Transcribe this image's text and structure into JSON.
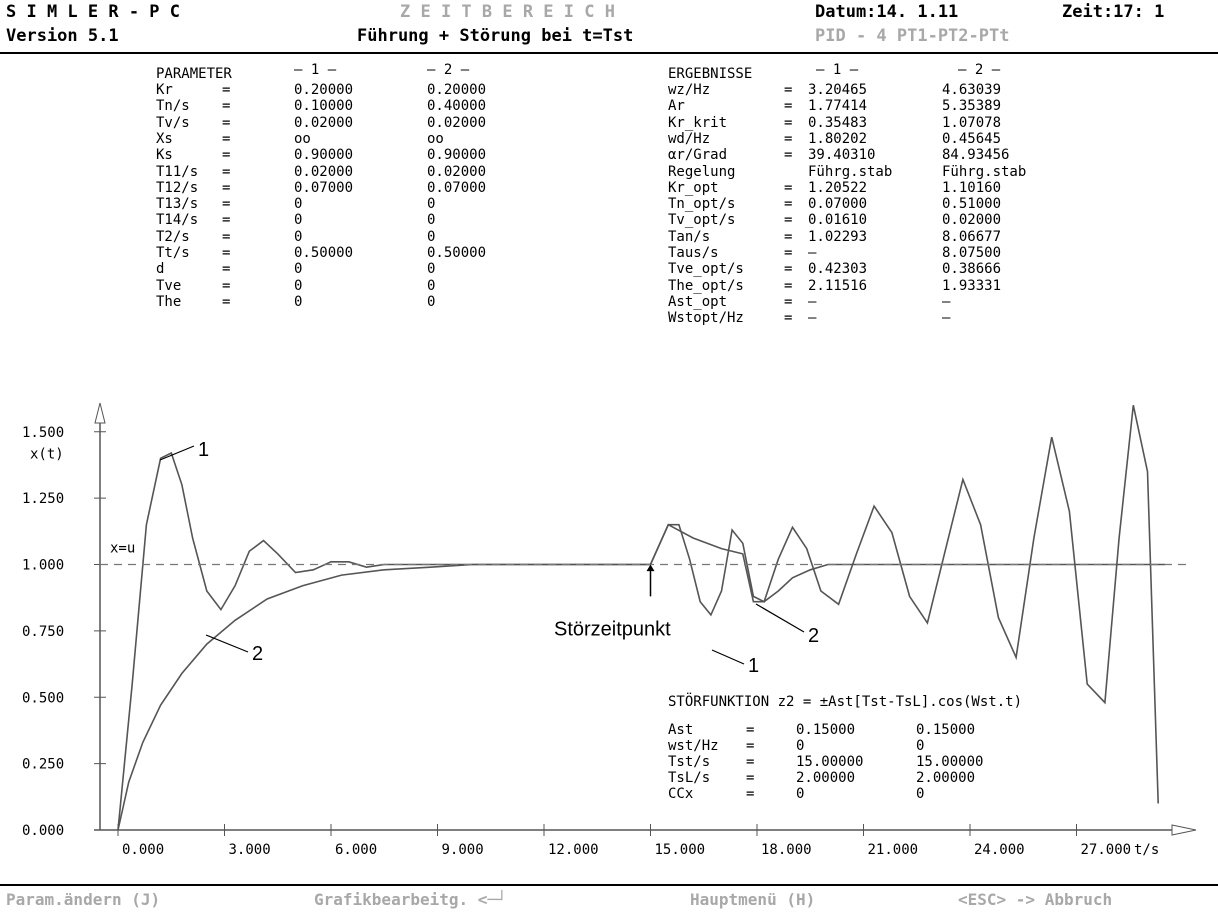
{
  "header": {
    "app": "S I M L E R - P C",
    "version": "Version 5.1",
    "mode": "Z E I T B E R E I C H",
    "subtitle": "Führung + Störung bei t=Tst",
    "date": "Datum:14. 1.11",
    "time": "Zeit:17: 1",
    "model": "PID - 4 PT1-PT2-PTt"
  },
  "parameters": {
    "title": "PARAMETER",
    "col1": "— 1 —",
    "col2": "— 2 —",
    "rows": [
      {
        "name": "Kr",
        "eq": "=",
        "v1": "0.20000",
        "v2": "0.20000"
      },
      {
        "name": "Tn/s",
        "eq": "=",
        "v1": "0.10000",
        "v2": "0.40000"
      },
      {
        "name": "Tv/s",
        "eq": "=",
        "v1": "0.02000",
        "v2": "0.02000"
      },
      {
        "name": "Xs",
        "eq": "=",
        "v1": "oo",
        "v2": "oo"
      },
      {
        "name": "Ks",
        "eq": "=",
        "v1": "0.90000",
        "v2": "0.90000"
      },
      {
        "name": "T11/s",
        "eq": "=",
        "v1": "0.02000",
        "v2": "0.02000"
      },
      {
        "name": "T12/s",
        "eq": "=",
        "v1": "0.07000",
        "v2": "0.07000"
      },
      {
        "name": "T13/s",
        "eq": "=",
        "v1": "0",
        "v2": "0"
      },
      {
        "name": "T14/s",
        "eq": "=",
        "v1": "0",
        "v2": "0"
      },
      {
        "name": "T2/s",
        "eq": "=",
        "v1": "0",
        "v2": "0"
      },
      {
        "name": "Tt/s",
        "eq": "=",
        "v1": "0.50000",
        "v2": "0.50000"
      },
      {
        "name": "d",
        "eq": "=",
        "v1": "0",
        "v2": "0"
      },
      {
        "name": "Tve",
        "eq": "=",
        "v1": "0",
        "v2": "0"
      },
      {
        "name": "The",
        "eq": "=",
        "v1": "0",
        "v2": "0"
      }
    ]
  },
  "results": {
    "title": "ERGEBNISSE",
    "col1": "— 1 —",
    "col2": "— 2 —",
    "rows": [
      {
        "name": "wz/Hz",
        "eq": "=",
        "v1": "3.20465",
        "v2": "4.63039"
      },
      {
        "name": "Ar",
        "eq": "=",
        "v1": "1.77414",
        "v2": "5.35389"
      },
      {
        "name": "Kr_krit",
        "eq": "=",
        "v1": "0.35483",
        "v2": "1.07078"
      },
      {
        "name": "wd/Hz",
        "eq": "=",
        "v1": "1.80202",
        "v2": "0.45645"
      },
      {
        "name": "αr/Grad",
        "eq": "=",
        "v1": "39.40310",
        "v2": "84.93456"
      },
      {
        "name": "Regelung",
        "eq": "",
        "v1": "Führg.stab",
        "v2": "Führg.stab"
      },
      {
        "name": "Kr_opt",
        "eq": "=",
        "v1": "1.20522",
        "v2": "1.10160"
      },
      {
        "name": "Tn_opt/s",
        "eq": "=",
        "v1": "0.07000",
        "v2": "0.51000"
      },
      {
        "name": "Tv_opt/s",
        "eq": "=",
        "v1": "0.01610",
        "v2": "0.02000"
      },
      {
        "name": "Tan/s",
        "eq": "=",
        "v1": "1.02293",
        "v2": "8.06677"
      },
      {
        "name": "Taus/s",
        "eq": "=",
        "v1": "–",
        "v2": "8.07500"
      },
      {
        "name": "Tve_opt/s",
        "eq": "=",
        "v1": "0.42303",
        "v2": "0.38666"
      },
      {
        "name": "The_opt/s",
        "eq": "=",
        "v1": "2.11516",
        "v2": "1.93331"
      },
      {
        "name": "Ast_opt",
        "eq": "=",
        "v1": "–",
        "v2": "–"
      },
      {
        "name": "Wstopt/Hz",
        "eq": "=",
        "v1": "–",
        "v2": "–"
      }
    ]
  },
  "disturbance": {
    "title": "STÖRFUNKTION z2 = ±Ast[Tst-TsL].cos(Wst.t)",
    "rows": [
      {
        "name": "Ast",
        "eq": "=",
        "v1": "0.15000",
        "v2": "0.15000"
      },
      {
        "name": "wst/Hz",
        "eq": "=",
        "v1": "0",
        "v2": "0"
      },
      {
        "name": "Tst/s",
        "eq": "=",
        "v1": "15.00000",
        "v2": "15.00000"
      },
      {
        "name": "TsL/s",
        "eq": "=",
        "v1": "2.00000",
        "v2": "2.00000"
      },
      {
        "name": "CCx",
        "eq": "=",
        "v1": "0",
        "v2": "0"
      }
    ]
  },
  "chart_data": {
    "type": "line",
    "ylabel": "x(t)",
    "xlabel": "t/s",
    "xlim": [
      0,
      29.5
    ],
    "ylim": [
      0,
      1.6
    ],
    "xticks": [
      "0.000",
      "3.000",
      "6.000",
      "9.000",
      "12.000",
      "15.000",
      "18.000",
      "21.000",
      "24.000",
      "27.000"
    ],
    "yticks": [
      "0.000",
      "0.250",
      "0.500",
      "0.750",
      "1.000",
      "1.250",
      "1.500"
    ],
    "reference_label": "x=u",
    "reference_value": 1.0,
    "disturbance_time": 15.0,
    "annotation": "Störzeitpunkt",
    "series": [
      {
        "name": "1",
        "x": [
          0,
          0.4,
          0.8,
          1.2,
          1.5,
          1.8,
          2.1,
          2.5,
          2.9,
          3.3,
          3.7,
          4.1,
          4.5,
          5,
          5.5,
          6,
          6.5,
          7,
          7.5,
          8,
          9,
          10,
          11,
          12,
          13,
          14,
          15,
          15.5,
          15.8,
          16.1,
          16.4,
          16.7,
          17,
          17.3,
          17.6,
          17.9,
          18.2,
          18.6,
          19,
          19.4,
          19.8,
          20.3,
          20.8,
          21.3,
          21.8,
          22.3,
          22.8,
          23.3,
          23.8,
          24.3,
          24.8,
          25.3,
          25.8,
          26.3,
          26.8,
          27.3,
          27.8,
          28.2,
          28.6,
          29,
          29.3
        ],
        "y": [
          0,
          0.55,
          1.15,
          1.4,
          1.42,
          1.3,
          1.1,
          0.9,
          0.83,
          0.92,
          1.05,
          1.09,
          1.04,
          0.97,
          0.98,
          1.01,
          1.01,
          0.99,
          1.0,
          1.0,
          1.0,
          1.0,
          1.0,
          1.0,
          1.0,
          1.0,
          1.0,
          1.15,
          1.15,
          1.02,
          0.86,
          0.81,
          0.9,
          1.13,
          1.08,
          0.88,
          0.86,
          1.02,
          1.14,
          1.06,
          0.9,
          0.85,
          1.04,
          1.22,
          1.12,
          0.88,
          0.78,
          1.05,
          1.32,
          1.15,
          0.8,
          0.65,
          1.1,
          1.48,
          1.2,
          0.55,
          0.48,
          1.1,
          1.6,
          1.35,
          0.1
        ]
      },
      {
        "name": "2",
        "x": [
          0,
          0.3,
          0.7,
          1.2,
          1.8,
          2.5,
          3.3,
          4.2,
          5.2,
          6.3,
          7.5,
          8.8,
          10,
          11,
          12,
          13,
          14,
          15,
          15.5,
          16.2,
          17,
          17.6,
          17.9,
          18.2,
          18.6,
          19,
          19.5,
          20,
          21,
          22,
          24,
          26,
          28,
          29.5
        ],
        "y": [
          0,
          0.18,
          0.33,
          0.47,
          0.59,
          0.7,
          0.79,
          0.87,
          0.92,
          0.96,
          0.98,
          0.99,
          1.0,
          1.0,
          1.0,
          1.0,
          1.0,
          1.0,
          1.15,
          1.1,
          1.06,
          1.04,
          0.86,
          0.86,
          0.9,
          0.95,
          0.98,
          1.0,
          1.0,
          1.0,
          1.0,
          1.0,
          1.0,
          1.0
        ]
      }
    ]
  },
  "footer": {
    "change_params": "Param.ändern (J)",
    "graphics": "Grafikbearbeitg. <─┘",
    "main_menu": "Hauptmenü (H)",
    "abort": "<ESC> -> Abbruch"
  }
}
